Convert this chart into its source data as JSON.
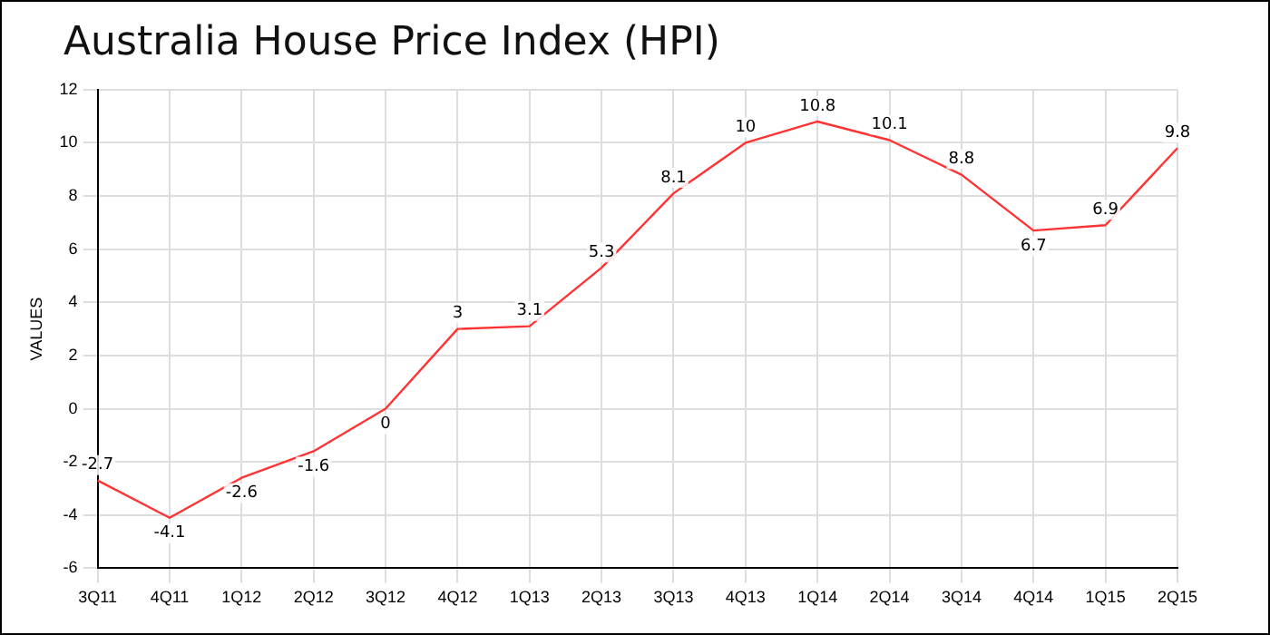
{
  "chart_data": {
    "type": "line",
    "title": "Australia House Price Index (HPI)",
    "ylabel": "VALUES",
    "categories": [
      "3Q11",
      "4Q11",
      "1Q12",
      "2Q12",
      "3Q12",
      "4Q12",
      "1Q13",
      "2Q13",
      "3Q13",
      "4Q13",
      "1Q14",
      "2Q14",
      "3Q14",
      "4Q14",
      "1Q15",
      "2Q15"
    ],
    "series": [
      {
        "color": "#ff3333",
        "values": [
          -2.7,
          -4.1,
          -2.6,
          -1.6,
          0,
          3,
          3.1,
          5.3,
          8.1,
          10,
          10.8,
          10.1,
          8.8,
          6.7,
          6.9,
          9.8
        ]
      }
    ],
    "ylim": [
      -6,
      12
    ],
    "yticks": [
      -6,
      -4,
      -2,
      0,
      2,
      4,
      6,
      8,
      10,
      12
    ],
    "grid": true,
    "data_labels": true,
    "marker": "none",
    "line_style": "solid"
  }
}
